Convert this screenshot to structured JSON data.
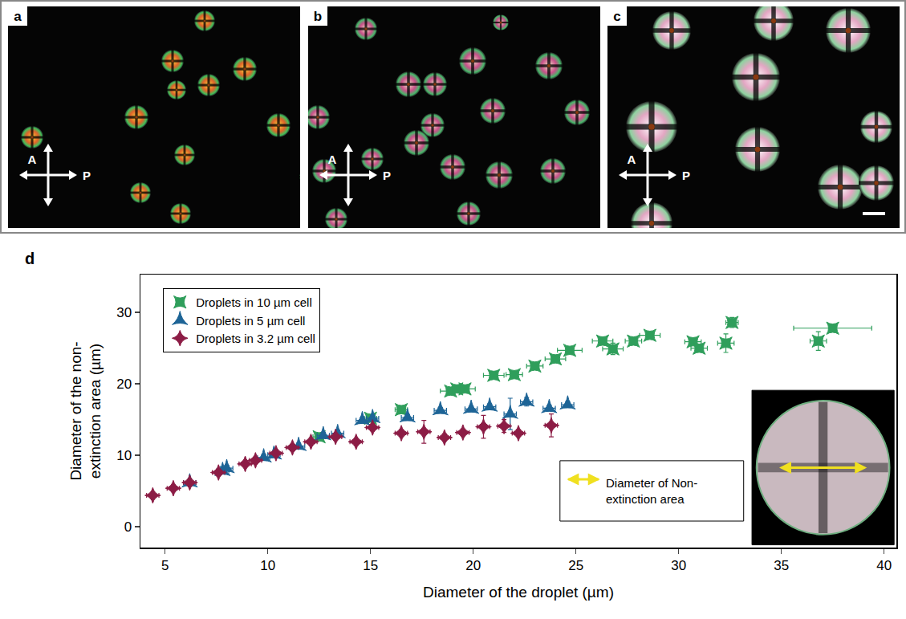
{
  "figure": {
    "panels": [
      {
        "label": "a"
      },
      {
        "label": "b"
      },
      {
        "label": "c"
      }
    ],
    "analyzer": "A",
    "polarizer": "P"
  },
  "chart_data": {
    "type": "scatter",
    "panel_label": "d",
    "x_label": "Diameter of the droplet (µm)",
    "y_label": [
      "Diameter of the non-",
      "extinction area (µm)"
    ],
    "xlim": [
      3.8,
      40.6
    ],
    "xticks": [
      5,
      10,
      15,
      20,
      25,
      30,
      35,
      40
    ],
    "ylim": [
      -2.9,
      35.3
    ],
    "yticks": [
      0,
      10,
      20,
      30
    ],
    "grid": false,
    "legend": "upper left",
    "inset_label": [
      "Diameter of Non-",
      "extinction area"
    ],
    "series": [
      {
        "name": "Droplets in 10 µm cell",
        "color": "#2f9e5b",
        "marker": "star-square",
        "x": [
          12.5,
          15,
          16.5,
          18.9,
          19.2,
          19.6,
          21,
          22,
          23,
          24,
          24.7,
          26.3,
          26.8,
          27.8,
          28.6,
          30.7,
          31,
          32.3,
          32.6,
          36.8,
          37.5
        ],
        "values": [
          12.6,
          15.2,
          16.4,
          19,
          19.3,
          19.3,
          21.2,
          21.3,
          22.5,
          23.5,
          24.7,
          26,
          24.9,
          26,
          26.8,
          25.9,
          25,
          25.7,
          28.6,
          26,
          27.8
        ],
        "error_x": [
          0.3,
          0.3,
          0.3,
          0.5,
          0.5,
          0.5,
          0.5,
          0.4,
          0.4,
          0.5,
          0.6,
          0.5,
          0.5,
          0.4,
          0.5,
          0.4,
          0.4,
          0.4,
          0.3,
          0.4,
          1.9
        ],
        "error_y": [
          0.4,
          0.4,
          0.4,
          0.4,
          0.4,
          0.4,
          0.4,
          0.4,
          0.4,
          0.4,
          0.4,
          0.4,
          0.8,
          0.4,
          0.4,
          0.4,
          0.5,
          1.3,
          0.7,
          1.3,
          0.4
        ]
      },
      {
        "name": "Droplets in 5 µm cell",
        "color": "#1d6496",
        "marker": "star-triangle-up",
        "x": [
          6.2,
          7.8,
          8,
          9.8,
          10.3,
          11.5,
          12.7,
          13.4,
          14.6,
          15.1,
          16.8,
          18.4,
          19.9,
          20.8,
          21.8,
          22.6,
          23.7,
          24.6
        ],
        "values": [
          6.2,
          7.8,
          8.2,
          9.7,
          10.1,
          11.3,
          12.8,
          13.1,
          14.9,
          15.2,
          15.3,
          16.3,
          16.5,
          16.8,
          15.8,
          17.5,
          16.6,
          17.1
        ],
        "error_x": [
          0.3,
          0.3,
          0.3,
          0.3,
          0.3,
          0.3,
          0.3,
          0.3,
          0.3,
          0.3,
          0.3,
          0.3,
          0.3,
          0.3,
          0.3,
          0.3,
          0.3,
          0.3
        ],
        "error_y": [
          0.4,
          0.4,
          0.4,
          0.4,
          0.4,
          0.4,
          0.4,
          0.4,
          0.4,
          0.4,
          0.4,
          0.4,
          0.4,
          0.4,
          2.2,
          0.6,
          0.4,
          0.4
        ]
      },
      {
        "name": "Droplets in 3.2 µm cell",
        "color": "#8c1c45",
        "marker": "star-diamond",
        "x": [
          4.4,
          5.4,
          6.2,
          7.6,
          8.9,
          9.4,
          10.4,
          11.2,
          12.1,
          13.3,
          14.3,
          15.1,
          16.5,
          17.6,
          18.6,
          19.5,
          20.5,
          21.5,
          22.2,
          23.8
        ],
        "values": [
          4.4,
          5.4,
          6.2,
          7.6,
          8.8,
          9.3,
          10.3,
          11.1,
          11.9,
          12.6,
          11.9,
          13.9,
          13.1,
          13.3,
          12.5,
          13.2,
          14.0,
          14.1,
          13.1,
          14.2
        ],
        "error_x": [
          0.3,
          0.3,
          0.3,
          0.3,
          0.3,
          0.3,
          0.3,
          0.3,
          0.3,
          0.3,
          0.3,
          0.3,
          0.3,
          0.3,
          0.3,
          0.3,
          0.3,
          0.3,
          0.3,
          0.3
        ],
        "error_y": [
          0.4,
          0.4,
          0.4,
          0.4,
          0.4,
          0.4,
          0.4,
          0.4,
          0.4,
          0.4,
          0.4,
          0.4,
          0.4,
          1.6,
          0.4,
          0.4,
          1.6,
          0.9,
          0.4,
          1.6
        ]
      }
    ]
  }
}
